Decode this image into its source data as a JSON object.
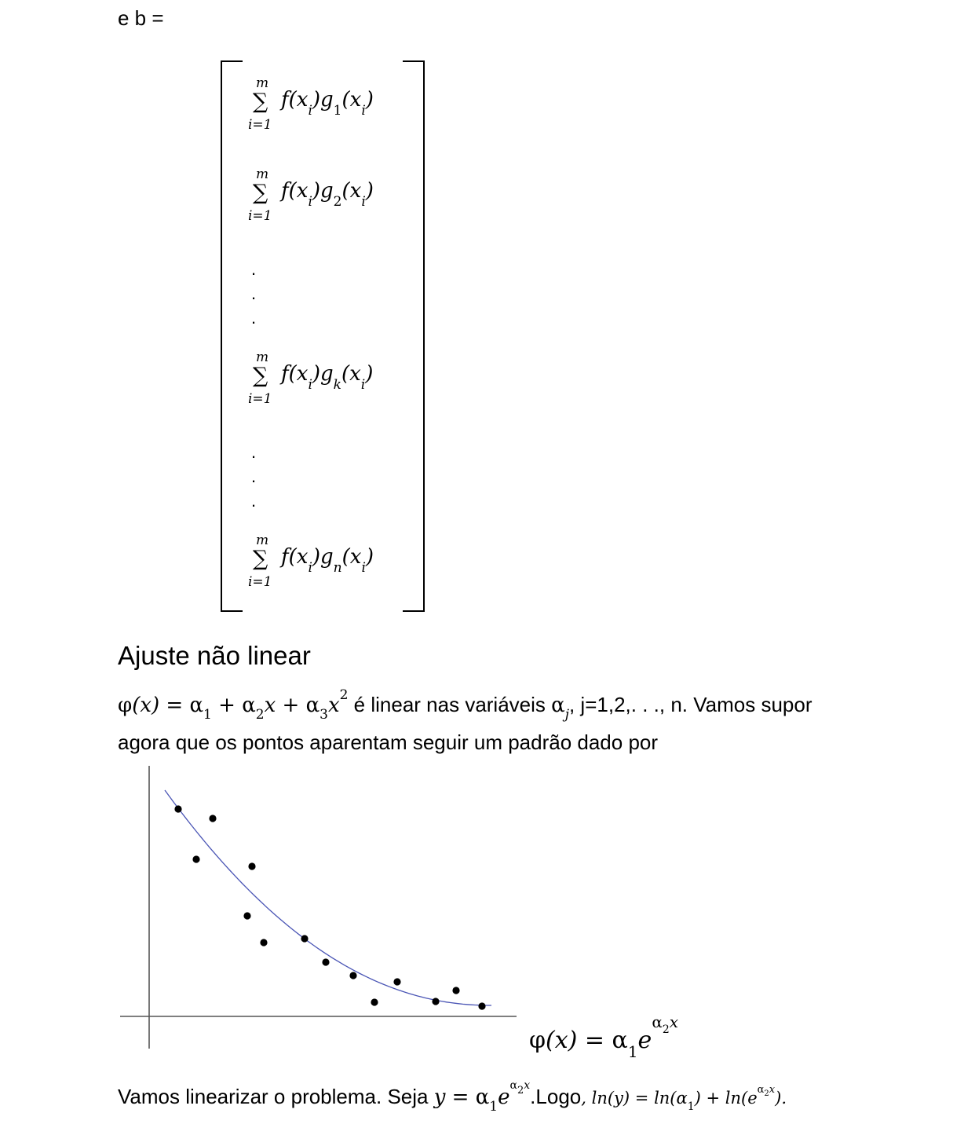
{
  "intro": {
    "text": "e b ="
  },
  "matrix": {
    "sum_upper": "m",
    "sum_symbol": "∑",
    "sum_lower": "i=1",
    "vertical_dot": ".",
    "entries": [
      {
        "f": "f(x",
        "f_sub": "i",
        "g": ")g",
        "g_sub": "1",
        "x": "(x",
        "x_sub": "i",
        "close": ")"
      },
      {
        "f": "f(x",
        "f_sub": "i",
        "g": ")g",
        "g_sub": "2",
        "x": "(x",
        "x_sub": "i",
        "close": ")"
      },
      {
        "f": "f(x",
        "f_sub": "i",
        "g": ")g",
        "g_sub": "k",
        "x": "(x",
        "x_sub": "i",
        "close": ")"
      },
      {
        "f": "f(x",
        "f_sub": "i",
        "g": ")g",
        "g_sub": "n",
        "x": "(x",
        "x_sub": "i",
        "close": ")"
      }
    ]
  },
  "section": {
    "title": "Ajuste não linear"
  },
  "paragraph1": {
    "phi": "φ",
    "phi_arg": "(x)",
    "eq": " = α",
    "a1_sub": "1",
    "plus1": " + α",
    "a2_sub": "2",
    "x1": "x",
    "plus2": " + α",
    "a3_sub": "3",
    "x2": "x",
    "x2_sup": "2",
    "text_a": " é linear nas variáveis ",
    "aj": "α",
    "aj_sub": "j",
    "text_b": ", j=1,2,. . ., n. Vamos supor",
    "line2": "agora que os pontos aparentam seguir um padrão dado por"
  },
  "figure": {
    "curve_color": "#4a55b5",
    "axis_color": "#555555",
    "point_color": "#000000",
    "formula": {
      "phi": "φ",
      "phi_arg": "(x)",
      "eq": " = α",
      "a1_sub": "1",
      "e": "e",
      "exp_alpha": "α",
      "exp_sub": "2",
      "exp_x": "x"
    }
  },
  "paragraph2": {
    "text_a": "Vamos linearizar o problema. Seja ",
    "y": "y",
    "eq": " = α",
    "a1_sub": "1",
    "e": "e",
    "exp_alpha": "α",
    "exp_sub": "2",
    "exp_x": "x",
    "text_b": ".Logo",
    "comma": ", ",
    "ln1": "ln(y)",
    "eq2": " = ",
    "ln2": "ln(α",
    "ln2_sub": "1",
    "ln2_close": ")",
    "plus": " + ",
    "ln3": "ln(e",
    "ln3_exp_alpha": "α",
    "ln3_exp_sub": "2",
    "ln3_exp_x": "x",
    "ln3_close": ").",
    "end": ""
  }
}
